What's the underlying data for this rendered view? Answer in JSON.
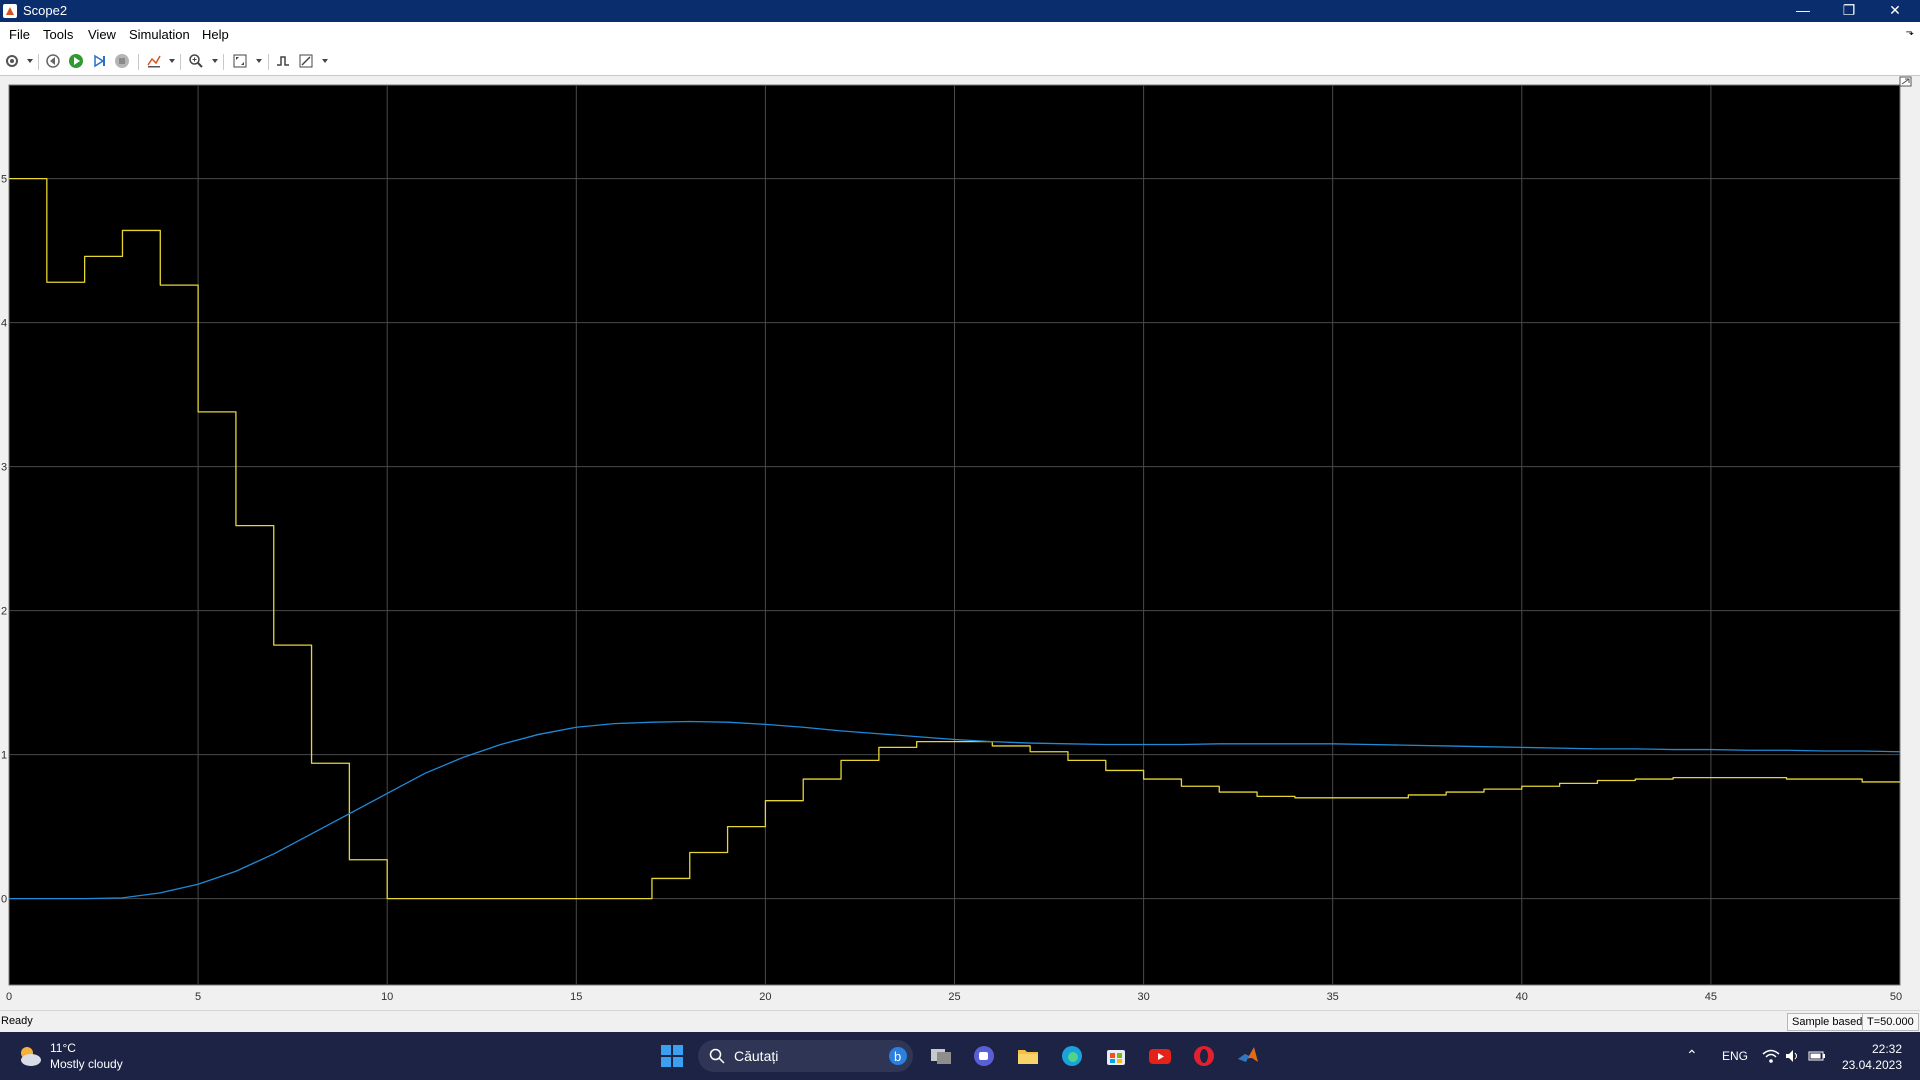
{
  "window": {
    "title": "Scope2",
    "minimize": "—",
    "restore": "❐",
    "close": "✕"
  },
  "menu": [
    "File",
    "Tools",
    "View",
    "Simulation",
    "Help"
  ],
  "toolbar": {
    "icons": [
      "settings-icon",
      "step-back-icon",
      "run-icon",
      "step-forward-icon",
      "stop-icon",
      "highlight-icon",
      "zoom-icon",
      "autoscale-icon",
      "triggers-icon",
      "style-icon"
    ]
  },
  "colors": {
    "plot_bg": "#000000",
    "grid": "#4a4a4a",
    "series1": "#e6d630",
    "series2": "#1f8ad8",
    "axis_text": "#303030",
    "taskbar": "#1c2344"
  },
  "chart_data": {
    "type": "line",
    "xlim": [
      0,
      50
    ],
    "ylim": [
      -0.6,
      5.65
    ],
    "xticks": [
      "0",
      "5",
      "10",
      "15",
      "20",
      "25",
      "30",
      "35",
      "40",
      "45",
      "50"
    ],
    "yticks": [
      "0",
      "1",
      "2",
      "3",
      "4",
      "5"
    ],
    "grid": true,
    "series": [
      {
        "style": "stairs",
        "color": "#e6d630",
        "x": [
          0,
          1,
          2,
          3,
          4,
          5,
          6,
          7,
          8,
          9,
          10,
          11,
          12,
          13,
          14,
          15,
          16,
          17,
          18,
          19,
          20,
          21,
          22,
          23,
          24,
          25,
          26,
          27,
          28,
          29,
          30,
          31,
          32,
          33,
          34,
          35,
          36,
          37,
          38,
          39,
          40,
          41,
          42,
          43,
          44,
          45,
          46,
          47,
          48,
          49,
          50
        ],
        "y": [
          5.0,
          4.28,
          4.46,
          4.64,
          4.26,
          3.38,
          2.59,
          1.76,
          0.94,
          0.27,
          0.0,
          0.0,
          0.0,
          0.0,
          0.0,
          0.0,
          0.0,
          0.14,
          0.32,
          0.5,
          0.68,
          0.83,
          0.96,
          1.05,
          1.09,
          1.09,
          1.06,
          1.02,
          0.96,
          0.89,
          0.83,
          0.78,
          0.74,
          0.71,
          0.7,
          0.7,
          0.7,
          0.72,
          0.74,
          0.76,
          0.78,
          0.8,
          0.82,
          0.83,
          0.84,
          0.84,
          0.84,
          0.83,
          0.83,
          0.81,
          0.81
        ]
      },
      {
        "style": "smooth",
        "color": "#1f8ad8",
        "x": [
          0,
          1,
          2,
          3,
          4,
          5,
          6,
          7,
          8,
          9,
          10,
          11,
          12,
          13,
          14,
          15,
          16,
          17,
          18,
          19,
          20,
          21,
          22,
          23,
          24,
          25,
          26,
          27,
          28,
          29,
          30,
          31,
          32,
          33,
          34,
          35,
          36,
          37,
          38,
          39,
          40,
          41,
          42,
          43,
          44,
          45,
          46,
          47,
          48,
          49,
          50
        ],
        "y": [
          0,
          0,
          0,
          0.005,
          0.04,
          0.1,
          0.19,
          0.31,
          0.45,
          0.59,
          0.73,
          0.87,
          0.98,
          1.07,
          1.14,
          1.19,
          1.215,
          1.225,
          1.23,
          1.225,
          1.21,
          1.19,
          1.165,
          1.145,
          1.125,
          1.105,
          1.09,
          1.08,
          1.075,
          1.07,
          1.07,
          1.07,
          1.075,
          1.075,
          1.075,
          1.075,
          1.07,
          1.065,
          1.06,
          1.055,
          1.05,
          1.045,
          1.04,
          1.04,
          1.035,
          1.035,
          1.03,
          1.03,
          1.025,
          1.025,
          1.02
        ]
      }
    ]
  },
  "statusbar": {
    "status": "Ready",
    "mode": "Sample based",
    "time": "T=50.000"
  },
  "taskbar": {
    "weather_temp": "11°C",
    "weather_desc": "Mostly cloudy",
    "search_placeholder": "Căutați",
    "apps": [
      "windows-start-icon",
      "bing-icon",
      "task-view-icon",
      "teams-icon",
      "file-explorer-icon",
      "edge-icon",
      "store-icon",
      "youtube-icon",
      "opera-icon",
      "matlab-icon"
    ],
    "language": "ENG",
    "time": "22:32",
    "date": "23.04.2023"
  }
}
